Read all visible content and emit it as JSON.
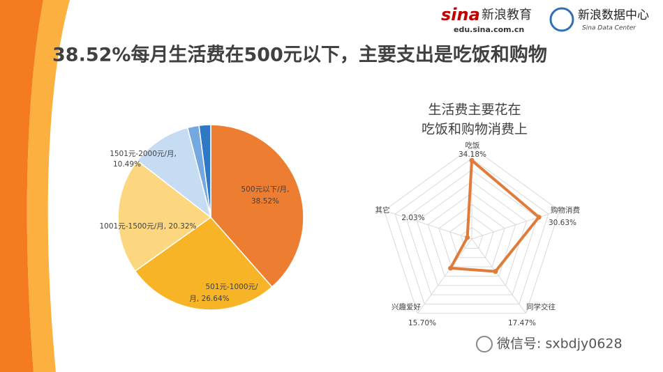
{
  "header": {
    "brand": "sina",
    "brand_cn": "新浪教育",
    "brand_url": "edu.sina.com.cn",
    "center_cn": "新浪数据中心",
    "center_en": "Sina Data Center",
    "title": "38.52%每月生活费在500元以下，主要支出是吃饭和购物",
    "watermark": "微信号: sxbdjy0628"
  },
  "chart_data": [
    {
      "type": "pie",
      "categories": [
        "500元以下/月",
        "501元-1000元/月",
        "1001元-1500元/月",
        "1501元-2000元/月",
        null,
        null
      ],
      "values": [
        38.52,
        26.64,
        20.32,
        10.49,
        2.0,
        2.03
      ],
      "value_labels": [
        [
          "500元以下/月,",
          "38.52%"
        ],
        [
          "501元-1000元/",
          "月, 26.64%"
        ],
        [
          "1001元-1500元/月, 20.32%"
        ],
        [
          "1501元-2000元/月,",
          "10.49%"
        ],
        null,
        null
      ],
      "colors": [
        "#ed7d31",
        "#f6b426",
        "#fcd77f",
        "#c5dcf3",
        "#73a9e0",
        "#2f78c4"
      ]
    },
    {
      "type": "radar",
      "title": [
        "生活费主要花在",
        "吃饭和购物消费上"
      ],
      "categories": [
        "吃饭",
        "购物消费",
        "同学交往",
        "兴趣爱好",
        "其它"
      ],
      "values": [
        34.18,
        30.63,
        17.47,
        15.7,
        2.03
      ],
      "value_labels": [
        "34.18%",
        "30.63%",
        "17.47%",
        "15.70%",
        "2.03%"
      ],
      "rlim": [
        0,
        40
      ],
      "rticks": [
        0,
        5,
        10,
        15,
        20,
        25,
        30,
        35,
        40
      ],
      "color": "#e07b3a",
      "grid": true
    }
  ]
}
